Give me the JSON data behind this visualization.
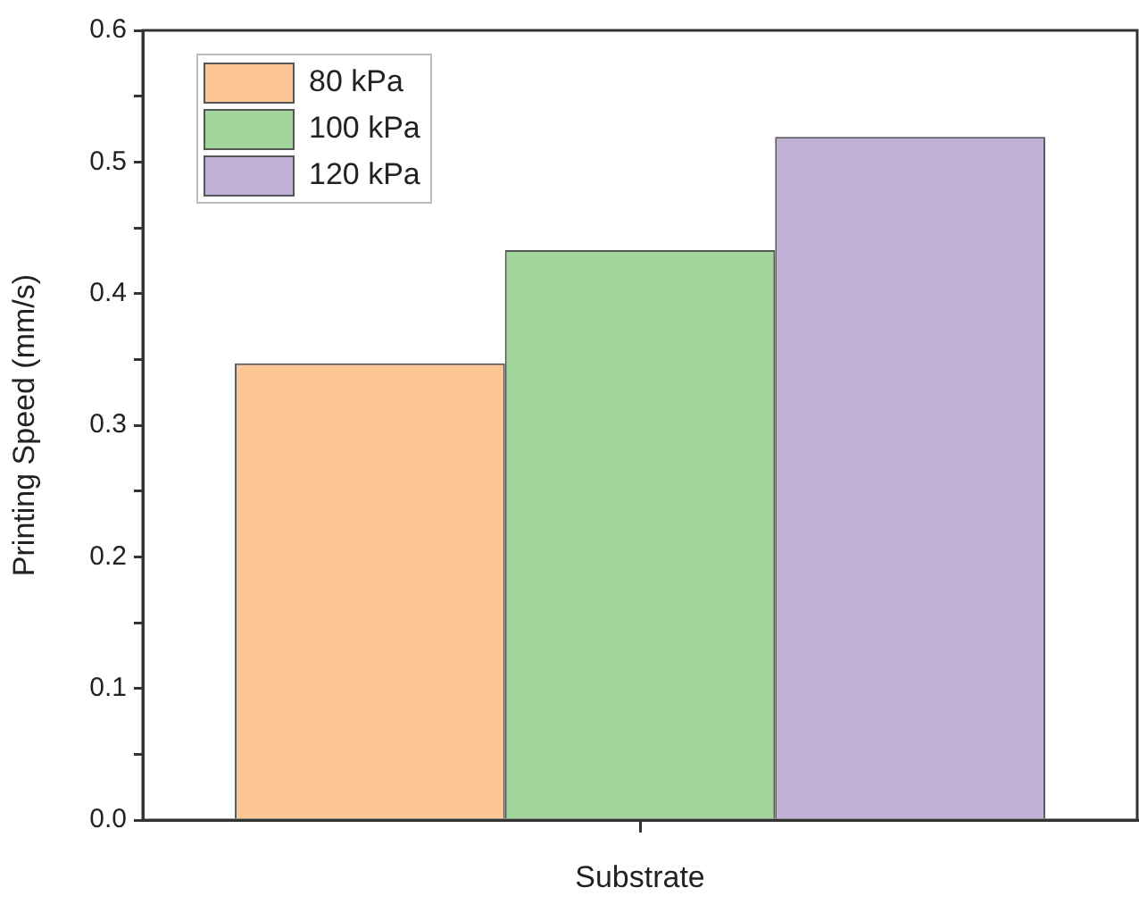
{
  "chart_data": {
    "type": "bar",
    "xlabel": "Substrate",
    "ylabel": "Printing Speed (mm/s)",
    "categories": [
      null
    ],
    "series": [
      {
        "name": "80 kPa",
        "color": "#fcc695",
        "values": [
          0.347
        ]
      },
      {
        "name": "100 kPa",
        "color": "#a0d69b",
        "values": [
          0.433
        ]
      },
      {
        "name": "120 kPa",
        "color": "#c0b0d6",
        "values": [
          0.519
        ]
      }
    ],
    "ylim": [
      0,
      0.6
    ],
    "yticks": [
      {
        "value": 0,
        "label": "0.0"
      },
      {
        "value": 0.05,
        "label": null
      },
      0.1,
      {
        "value": 0.15,
        "label": null
      },
      0.2,
      {
        "value": 0.25,
        "label": null
      },
      0.3,
      {
        "value": 0.35,
        "label": null
      },
      0.4,
      {
        "value": 0.45,
        "label": null
      },
      0.5,
      {
        "value": 0.55,
        "label": null
      },
      0.6
    ],
    "grid": false,
    "legend": "top left"
  }
}
